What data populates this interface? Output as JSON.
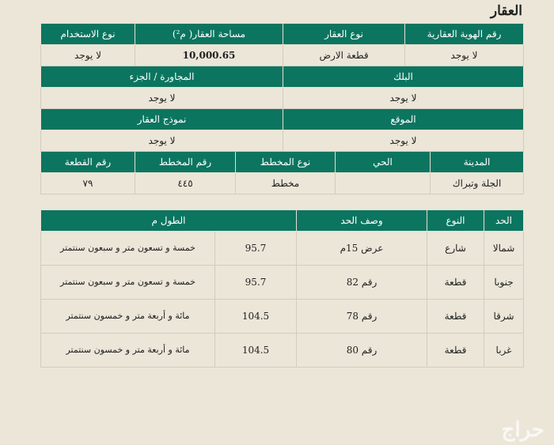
{
  "title": "العقار",
  "property": {
    "row1_headers": [
      "رقم الهوية العقارية",
      "نوع العقار",
      "مساحة العقار( م²)",
      "نوع الاستخدام"
    ],
    "row1_values": [
      "لا يوجد",
      "قطعة الارض",
      "10,000.65",
      "لا يوجد"
    ],
    "row2_headers": [
      "البلك",
      "المجاورة / الجزء"
    ],
    "row2_values": [
      "لا يوجد",
      "لا يوجد"
    ],
    "row3_headers": [
      "الموقع",
      "نموذج العقار"
    ],
    "row3_values": [
      "لا يوجد",
      "لا يوجد"
    ],
    "row4_headers": [
      "المدينة",
      "الحي",
      "نوع المخطط",
      "رقم المخطط",
      "رقم القطعة"
    ],
    "row4_values": [
      "الجلة وتبراك",
      "",
      "مخطط",
      "٤٤٥",
      "٧٩"
    ]
  },
  "boundaries": {
    "headers": [
      "الحد",
      "النوع",
      "وصف الحد",
      "الطول م"
    ],
    "rows": [
      {
        "side": "شمالا",
        "type": "شارع",
        "desc": "عرض 15م",
        "length": "95.7",
        "words": "خمسة و تسعون متر و سبعون سنتمتر"
      },
      {
        "side": "جنوبا",
        "type": "قطعة",
        "desc": "رقم 82",
        "length": "95.7",
        "words": "خمسة و تسعون متر و سبعون سنتمتر"
      },
      {
        "side": "شرقا",
        "type": "قطعة",
        "desc": "رقم 78",
        "length": "104.5",
        "words": "مائة و أربعة متر و خمسون سنتمتر"
      },
      {
        "side": "غربا",
        "type": "قطعة",
        "desc": "رقم 80",
        "length": "104.5",
        "words": "مائة و أربعة متر و خمسون سنتمتر"
      }
    ]
  },
  "watermark": "حراج",
  "colors": {
    "header": "#0b7560",
    "background": "#ebe6d8"
  }
}
